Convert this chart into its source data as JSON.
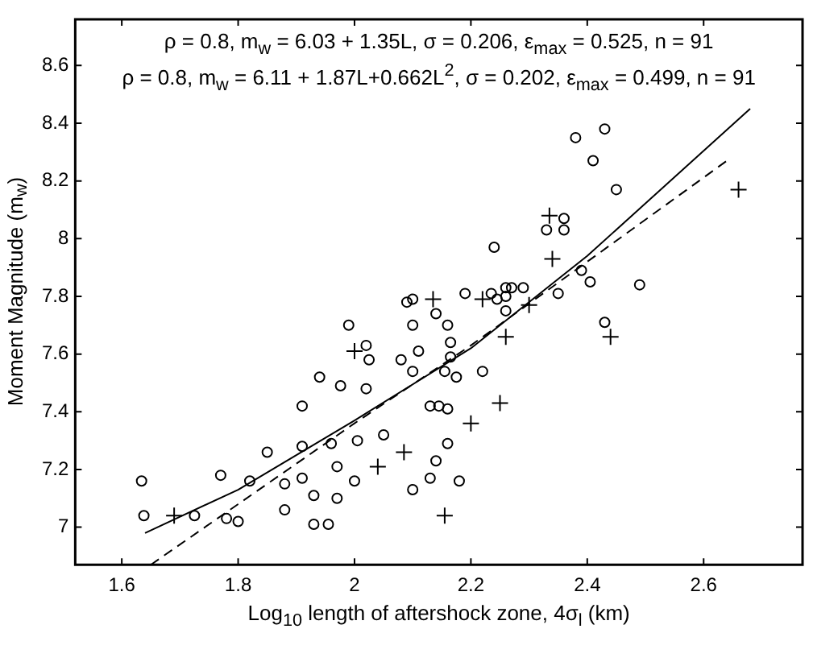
{
  "chart_data": {
    "type": "scatter",
    "xlabel": "Log$_{10}$ length of aftershock zone, 4σ$_{l}$ (km)",
    "ylabel": "Moment Magnitude (m$_{w}$)",
    "annotations": [
      "ρ = 0.8,  m$_{w}$ = 6.03 + 1.35L,  σ = 0.206,  ε$_{max}$ = 0.525,  n = 91",
      "ρ = 0.8, m$_{w}$ = 6.11 + 1.87L+0.662L$^{2}$, σ = 0.202, ε$_{max}$ = 0.499, n = 91"
    ],
    "xlim": [
      1.52,
      2.77
    ],
    "ylim": [
      6.87,
      8.76
    ],
    "xticks": [
      1.6,
      1.8,
      2,
      2.2,
      2.4,
      2.6
    ],
    "yticks": [
      7,
      7.2,
      7.4,
      7.6,
      7.8,
      8,
      8.2,
      8.4,
      8.6
    ],
    "grid": false,
    "legend": false,
    "series": [
      {
        "type": "scatter",
        "marker": "circle",
        "color": "#000000",
        "x": [
          1.638,
          1.634,
          1.725,
          1.78,
          1.82,
          1.85,
          1.88,
          1.88,
          1.91,
          1.91,
          1.93,
          1.93,
          1.955,
          1.94,
          1.96,
          1.97,
          1.97,
          1.976,
          1.99,
          2.005,
          2.0,
          2.02,
          2.025,
          2.05,
          2.08,
          2.09,
          2.1,
          2.1,
          2.1,
          2.11,
          2.1,
          2.13,
          2.14,
          2.16,
          2.16,
          2.165,
          2.165,
          2.175,
          2.16,
          2.18,
          2.19,
          2.41,
          2.45,
          2.36,
          2.33,
          2.36,
          2.235,
          2.245,
          2.26,
          2.27,
          2.29,
          2.26,
          2.35,
          2.39,
          2.405,
          2.49,
          2.43,
          2.22,
          2.145,
          2.38
        ],
        "values": [
          7.04,
          7.16,
          7.04,
          7.03,
          7.16,
          7.26,
          7.15,
          7.06,
          7.28,
          7.42,
          7.11,
          7.01,
          7.01,
          7.52,
          7.29,
          7.21,
          7.1,
          7.49,
          7.7,
          7.3,
          7.16,
          7.63,
          7.58,
          7.32,
          7.58,
          7.78,
          7.79,
          7.7,
          7.13,
          7.61,
          7.54,
          7.42,
          7.23,
          7.41,
          7.7,
          7.64,
          7.59,
          7.52,
          7.29,
          7.16,
          7.81,
          8.27,
          8.17,
          8.07,
          8.03,
          8.03,
          7.81,
          7.79,
          7.83,
          7.83,
          7.83,
          7.8,
          7.81,
          7.89,
          7.85,
          7.84,
          7.71,
          7.54,
          7.42,
          8.35
        ]
      },
      {
        "type": "scatter",
        "marker": "cross",
        "color": "#000000",
        "x": [
          1.69,
          2.0,
          2.085,
          2.04,
          2.135,
          2.155,
          2.335,
          2.34,
          2.26,
          2.25,
          2.2,
          2.44,
          2.66,
          2.22,
          2.3
        ],
        "values": [
          7.04,
          7.61,
          7.26,
          7.21,
          7.79,
          7.04,
          8.08,
          7.93,
          7.66,
          7.43,
          7.36,
          7.66,
          8.17,
          7.79,
          7.77
        ]
      },
      {
        "type": "scatter",
        "marker": "circle",
        "color": "#000000",
        "x": [
          1.77,
          1.8,
          1.91,
          2.02,
          2.14,
          2.155,
          2.13,
          2.24,
          2.26,
          2.43
        ],
        "values": [
          7.18,
          7.02,
          7.17,
          7.48,
          7.74,
          7.54,
          7.17,
          7.97,
          7.75,
          8.38
        ]
      },
      {
        "type": "line",
        "marker": "none",
        "line_style": "solid",
        "color": "#000000",
        "x": [
          1.64,
          1.8,
          2.0,
          2.2,
          2.4,
          2.68
        ],
        "values": [
          6.98,
          7.13,
          7.37,
          7.62,
          7.94,
          8.45
        ]
      },
      {
        "type": "line",
        "marker": "none",
        "line_style": "dashed",
        "color": "#000000",
        "x": [
          1.65,
          1.8,
          2.0,
          2.2,
          2.4,
          2.64
        ],
        "values": [
          6.87,
          7.08,
          7.36,
          7.63,
          7.92,
          8.27
        ]
      }
    ]
  }
}
